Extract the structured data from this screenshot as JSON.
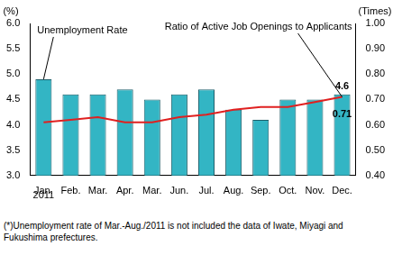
{
  "chart_data": {
    "type": "bar",
    "categories": [
      "Jan.",
      "Feb.",
      "Mar.",
      "Apr.",
      "Mar.",
      "Jun.",
      "Jul.",
      "Aug.",
      "Sep.",
      "Oct.",
      "Nov.",
      "Dec."
    ],
    "xlabel": "2011",
    "ylabel": "(%)",
    "y2label": "(Times)",
    "caption": "(*)Unemployment rate of Mar.-Aug./2011 is not included the data of Iwate, Miyagi and Fukushima prefectures.",
    "series": [
      {
        "name": "Unemployment Rate",
        "type": "bar",
        "color": "#33b5c4",
        "values": [
          4.9,
          4.6,
          4.6,
          4.7,
          4.5,
          4.6,
          4.7,
          4.3,
          4.1,
          4.5,
          4.5,
          4.6
        ],
        "value_labels": [
          null,
          null,
          null,
          null,
          null,
          null,
          null,
          null,
          null,
          null,
          null,
          "4.6"
        ]
      },
      {
        "name": "Ratio of Active Job Openings to Applicants",
        "type": "line",
        "color": "#e02020",
        "marker": "none",
        "axis": "y2",
        "values": [
          0.61,
          0.62,
          0.63,
          0.61,
          0.61,
          0.63,
          0.64,
          0.66,
          0.67,
          0.67,
          0.69,
          0.71
        ],
        "value_labels": [
          null,
          null,
          null,
          null,
          null,
          null,
          null,
          null,
          null,
          null,
          null,
          "0.71"
        ]
      }
    ],
    "ylim": [
      3.0,
      6.0
    ],
    "yticks": [
      {
        "value": 3.0,
        "label": "3.0"
      },
      {
        "value": 3.5,
        "label": "3.5"
      },
      {
        "value": 4.0,
        "label": "4.0"
      },
      {
        "value": 4.5,
        "label": "4.5"
      },
      {
        "value": 5.0,
        "label": "5.0"
      },
      {
        "value": 5.5,
        "label": "5.5"
      },
      {
        "value": 6.0,
        "label": "6.0"
      }
    ],
    "y2lim": [
      0.4,
      1.0
    ],
    "y2ticks": [
      {
        "value": 0.4,
        "label": "0.40"
      },
      {
        "value": 0.5,
        "label": "0.50"
      },
      {
        "value": 0.6,
        "label": "0.60"
      },
      {
        "value": 0.7,
        "label": "0.70"
      },
      {
        "value": 0.8,
        "label": "0.80"
      },
      {
        "value": 0.9,
        "label": "0.90"
      },
      {
        "value": 1.0,
        "label": "1.00"
      }
    ],
    "grid": false
  }
}
